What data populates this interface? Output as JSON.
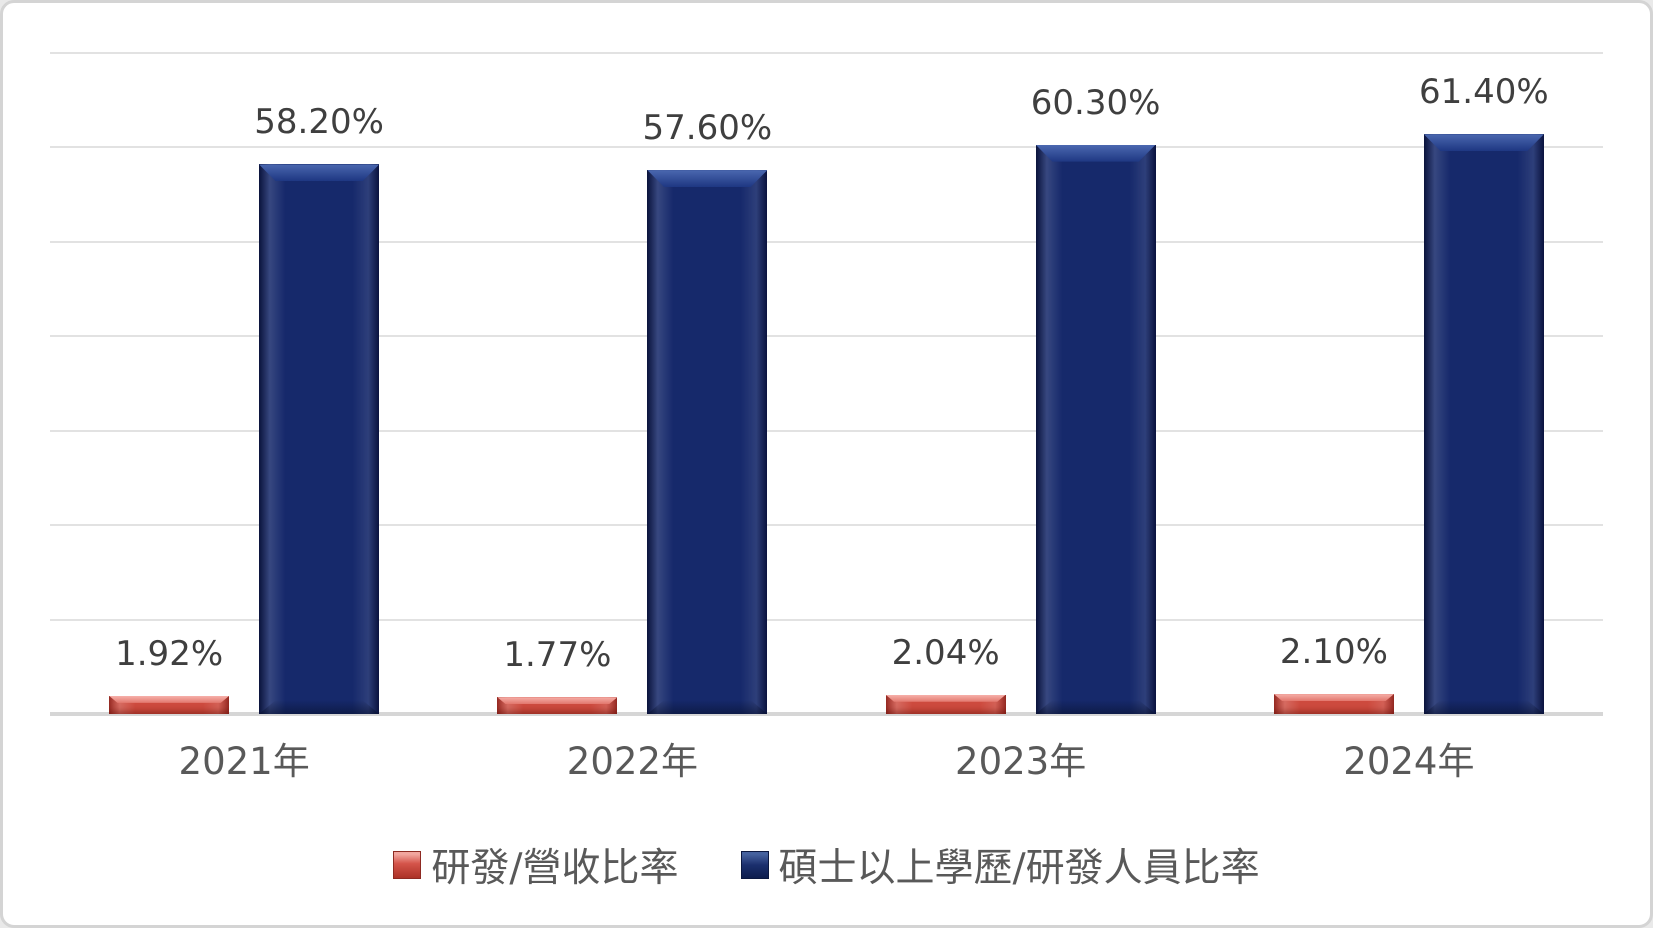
{
  "chart_data": {
    "type": "bar",
    "title": "",
    "xlabel": "",
    "ylabel": "",
    "categories": [
      "2021年",
      "2022年",
      "2023年",
      "2024年"
    ],
    "series": [
      {
        "name": "研發/營收比率",
        "color": "#CD4A3E",
        "values": [
          1.92,
          1.77,
          2.04,
          2.1
        ],
        "labels": [
          "1.92%",
          "1.77%",
          "2.04%",
          "2.10%"
        ]
      },
      {
        "name": "碩士以上學歷/研發人員比率",
        "color": "#16296B",
        "values": [
          58.2,
          57.6,
          60.3,
          61.4
        ],
        "labels": [
          "58.20%",
          "57.60%",
          "60.30%",
          "61.40%"
        ]
      }
    ],
    "ylim": [
      0,
      70
    ],
    "gridline_step": 10,
    "y_axis_labels_visible": false,
    "grid": true,
    "legend_position": "bottom",
    "colors": {
      "gridline": "#E2E2E2",
      "axis_line": "#D6D6D6",
      "data_label_text": "#3F3F3F",
      "axis_text": "#595959",
      "frame_border": "#D4D4D4",
      "background": "#FFFFFF"
    }
  }
}
